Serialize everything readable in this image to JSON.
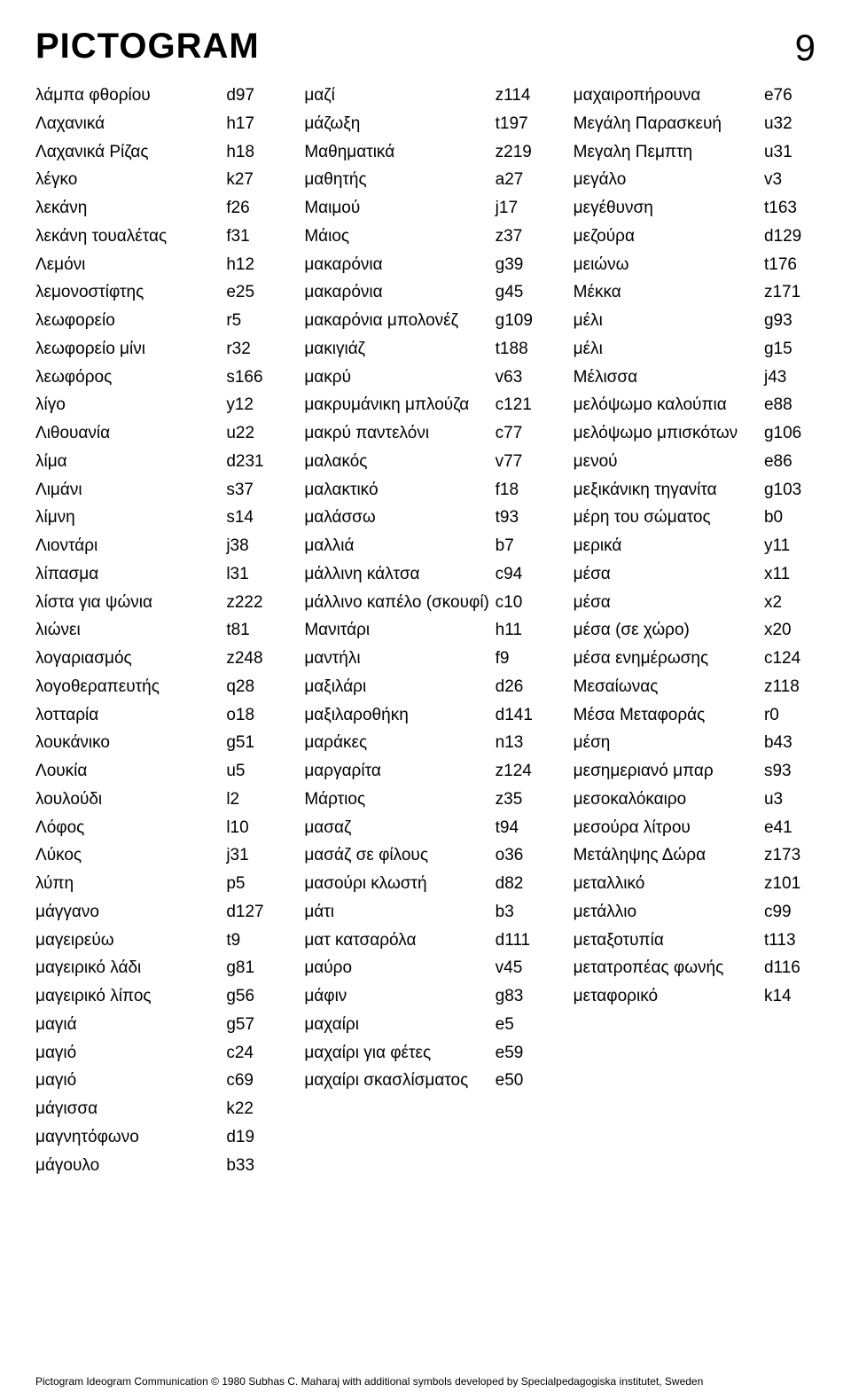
{
  "header": {
    "logo": "PICTOGRAM",
    "page_number": "9"
  },
  "footer": "Pictogram Ideogram Communication © 1980 Subhas C. Maharaj with additional symbols developed by Specialpedagogiska institutet, Sweden",
  "typography": {
    "body_font_size_pt": 14,
    "logo_font_size_pt": 30,
    "page_number_font_size_pt": 32,
    "footer_font_size_pt": 9,
    "text_color": "#000000",
    "background_color": "#ffffff"
  },
  "columns": [
    {
      "entries": [
        {
          "term": "λάμπα φθορίου",
          "code": "d97"
        },
        {
          "term": "Λαχανικά",
          "code": "h17"
        },
        {
          "term": "Λαχανικά Ρίζας",
          "code": "h18"
        },
        {
          "term": "λέγκο",
          "code": "k27"
        },
        {
          "term": "λεκάνη",
          "code": "f26"
        },
        {
          "term": "λεκάνη τουαλέτας",
          "code": "f31"
        },
        {
          "term": "Λεμόνι",
          "code": "h12"
        },
        {
          "term": "λεμονοστίφτης",
          "code": "e25"
        },
        {
          "term": "λεωφορείο",
          "code": "r5"
        },
        {
          "term": "λεωφορείο μίνι",
          "code": "r32"
        },
        {
          "term": "λεωφόρος",
          "code": "s166"
        },
        {
          "term": "λίγο",
          "code": "y12"
        },
        {
          "term": "Λιθουανία",
          "code": "u22"
        },
        {
          "term": "λίμα",
          "code": "d231"
        },
        {
          "term": "Λιμάνι",
          "code": "s37"
        },
        {
          "term": "λίμνη",
          "code": "s14"
        },
        {
          "term": "Λιοντάρι",
          "code": "j38"
        },
        {
          "term": "λίπασμα",
          "code": "l31"
        },
        {
          "term": "λίστα για ψώνια",
          "code": "z222"
        },
        {
          "term": "λιώνει",
          "code": "t81"
        },
        {
          "term": "λογαριασμός",
          "code": "z248"
        },
        {
          "term": "λογοθεραπευτής",
          "code": "q28"
        },
        {
          "term": "λοτταρία",
          "code": "o18"
        },
        {
          "term": "λουκάνικο",
          "code": "g51"
        },
        {
          "term": "Λουκία",
          "code": "u5"
        },
        {
          "term": "λουλούδι",
          "code": "l2"
        },
        {
          "term": "Λόφος",
          "code": "l10"
        },
        {
          "term": "Λύκος",
          "code": "j31"
        },
        {
          "term": "λύπη",
          "code": "p5"
        },
        {
          "term": "μάγγανο",
          "code": "d127"
        },
        {
          "term": "μαγειρεύω",
          "code": "t9"
        },
        {
          "term": "μαγειρικό λάδι",
          "code": "g81"
        },
        {
          "term": "μαγειρικό λίπος",
          "code": "g56"
        },
        {
          "term": "μαγιά",
          "code": "g57"
        },
        {
          "term": "μαγιό",
          "code": "c24"
        },
        {
          "term": "μαγιό",
          "code": "c69"
        },
        {
          "term": "μάγισσα",
          "code": "k22"
        },
        {
          "term": "μαγνητόφωνο",
          "code": "d19"
        },
        {
          "term": "μάγουλο",
          "code": "b33"
        }
      ]
    },
    {
      "entries": [
        {
          "term": "μαζί",
          "code": "z114"
        },
        {
          "term": "μάζωξη",
          "code": "t197"
        },
        {
          "term": "Μαθηματικά",
          "code": "z219"
        },
        {
          "term": "μαθητής",
          "code": "a27"
        },
        {
          "term": "Μαιμού",
          "code": "j17"
        },
        {
          "term": "Μάιος",
          "code": "z37"
        },
        {
          "term": "μακαρόνια",
          "code": "g39"
        },
        {
          "term": "μακαρόνια",
          "code": "g45"
        },
        {
          "term": "μακαρόνια μπολονέζ",
          "code": "g109"
        },
        {
          "term": "μακιγιάζ",
          "code": "t188"
        },
        {
          "term": "μακρύ",
          "code": "v63"
        },
        {
          "term": "μακρυμάνικη μπλούζα",
          "code": "c121"
        },
        {
          "term": "μακρύ παντελόνι",
          "code": "c77"
        },
        {
          "term": "μαλακός",
          "code": "v77"
        },
        {
          "term": "μαλακτικό",
          "code": "f18"
        },
        {
          "term": "μαλάσσω",
          "code": "t93"
        },
        {
          "term": "μαλλιά",
          "code": "b7"
        },
        {
          "term": "μάλλινη κάλτσα",
          "code": "c94"
        },
        {
          "term": "μάλλινο καπέλο (σκουφί)",
          "code": "c10"
        },
        {
          "term": "Μανιτάρι",
          "code": "h11"
        },
        {
          "term": "μαντήλι",
          "code": "f9"
        },
        {
          "term": "μαξιλάρι",
          "code": "d26"
        },
        {
          "term": "μαξιλαροθήκη",
          "code": "d141"
        },
        {
          "term": "μαράκες",
          "code": "n13"
        },
        {
          "term": "μαργαρίτα",
          "code": "z124"
        },
        {
          "term": "Μάρτιος",
          "code": "z35"
        },
        {
          "term": "μασαζ",
          "code": "t94"
        },
        {
          "term": "μασάζ σε φίλους",
          "code": "o36"
        },
        {
          "term": "μασούρι κλωστή",
          "code": "d82"
        },
        {
          "term": "μάτι",
          "code": "b3"
        },
        {
          "term": "ματ κατσαρόλα",
          "code": "d111"
        },
        {
          "term": "μαύρο",
          "code": "v45"
        },
        {
          "term": "μάφιν",
          "code": "g83"
        },
        {
          "term": "μαχαίρι",
          "code": "e5"
        },
        {
          "term": "μαχαίρι για φέτες",
          "code": "e59"
        },
        {
          "term": "μαχαίρι σκασλίσματος",
          "code": "e50"
        }
      ]
    },
    {
      "entries": [
        {
          "term": "μαχαιροπήρουνα",
          "code": "e76"
        },
        {
          "term": "Μεγάλη Παρασκευή",
          "code": "u32"
        },
        {
          "term": "Μεγαλη Πεμπτη",
          "code": "u31"
        },
        {
          "term": "μεγάλο",
          "code": "v3"
        },
        {
          "term": "μεγέθυνση",
          "code": "t163"
        },
        {
          "term": "μεζούρα",
          "code": "d129"
        },
        {
          "term": "μειώνω",
          "code": "t176"
        },
        {
          "term": "Μέκκα",
          "code": "z171"
        },
        {
          "term": "μέλι",
          "code": "g93"
        },
        {
          "term": "μέλι",
          "code": "g15"
        },
        {
          "term": "Μέλισσα",
          "code": "j43"
        },
        {
          "term": "μελόψωμο καλούπια",
          "code": "e88"
        },
        {
          "term": "μελόψωμο μπισκότων",
          "code": "g106"
        },
        {
          "term": "μενού",
          "code": "e86"
        },
        {
          "term": "μεξικάνικη τηγανίτα",
          "code": "g103"
        },
        {
          "term": "μέρη του σώματος",
          "code": "b0"
        },
        {
          "term": "μερικά",
          "code": "y11"
        },
        {
          "term": "μέσα",
          "code": "x11"
        },
        {
          "term": "μέσα",
          "code": "x2"
        },
        {
          "term": "μέσα (σε χώρο)",
          "code": "x20"
        },
        {
          "term": "μέσα ενημέρωσης",
          "code": "c124"
        },
        {
          "term": "Μεσαίωνας",
          "code": "z118"
        },
        {
          "term": "Μέσα Μεταφοράς",
          "code": "r0"
        },
        {
          "term": "μέση",
          "code": "b43"
        },
        {
          "term": "μεσημεριανό μπαρ",
          "code": "s93"
        },
        {
          "term": "μεσοκαλόκαιρο",
          "code": "u3"
        },
        {
          "term": "μεσούρα λίτρου",
          "code": "e41"
        },
        {
          "term": "Μετάληψης Δώρα",
          "code": "z173"
        },
        {
          "term": "μεταλλικό",
          "code": "z101"
        },
        {
          "term": "μετάλλιο",
          "code": "c99"
        },
        {
          "term": "μεταξοτυπία",
          "code": "t113"
        },
        {
          "term": "μετατροπέας φωνής",
          "code": "d116"
        },
        {
          "term": "μεταφορικό",
          "code": "k14"
        }
      ]
    }
  ]
}
